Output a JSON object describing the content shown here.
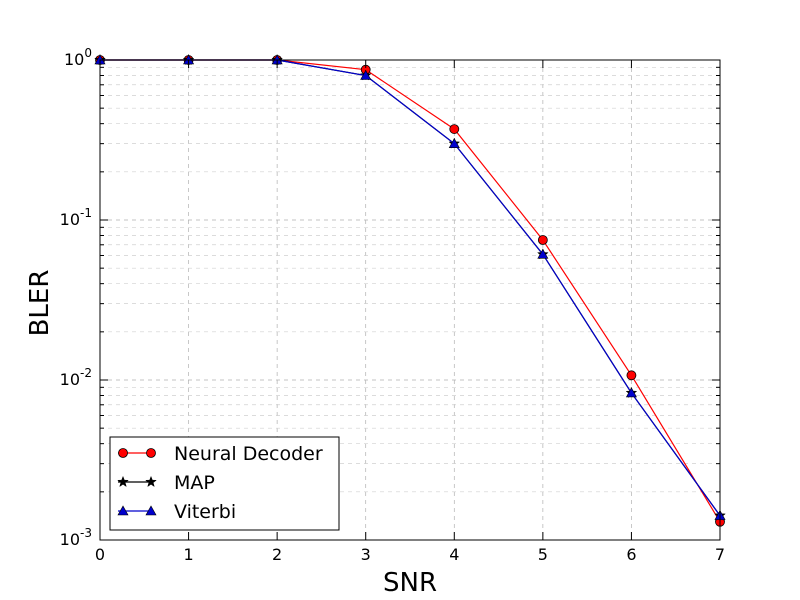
{
  "chart_data": {
    "type": "line",
    "xlabel": "SNR",
    "ylabel": "BLER",
    "x": [
      0,
      1,
      2,
      3,
      4,
      5,
      6,
      7
    ],
    "xlim": [
      0,
      7
    ],
    "ylim": [
      0.001,
      1
    ],
    "yscale": "log",
    "xticks": [
      "0",
      "1",
      "2",
      "3",
      "4",
      "5",
      "6",
      "7"
    ],
    "yticks": [
      {
        "base": "10",
        "exp": "0",
        "value": 1
      },
      {
        "base": "10",
        "exp": "-1",
        "value": 0.1
      },
      {
        "base": "10",
        "exp": "-2",
        "value": 0.01
      },
      {
        "base": "10",
        "exp": "-3",
        "value": 0.001
      }
    ],
    "grid": true,
    "legend_position": "lower-left",
    "series": [
      {
        "name": "Neural Decoder",
        "color": "#ff0000",
        "marker": "circle",
        "values": [
          1.0,
          1.0,
          1.0,
          0.87,
          0.37,
          0.075,
          0.0107,
          0.0013
        ]
      },
      {
        "name": "MAP",
        "color": "#000000",
        "marker": "star",
        "values": [
          1.0,
          1.0,
          1.0,
          0.8,
          0.3,
          0.061,
          0.0083,
          0.00142
        ]
      },
      {
        "name": "Viterbi",
        "color": "#0000cc",
        "marker": "triangle",
        "values": [
          1.0,
          1.0,
          1.0,
          0.8,
          0.3,
          0.061,
          0.0083,
          0.00142
        ]
      }
    ]
  }
}
